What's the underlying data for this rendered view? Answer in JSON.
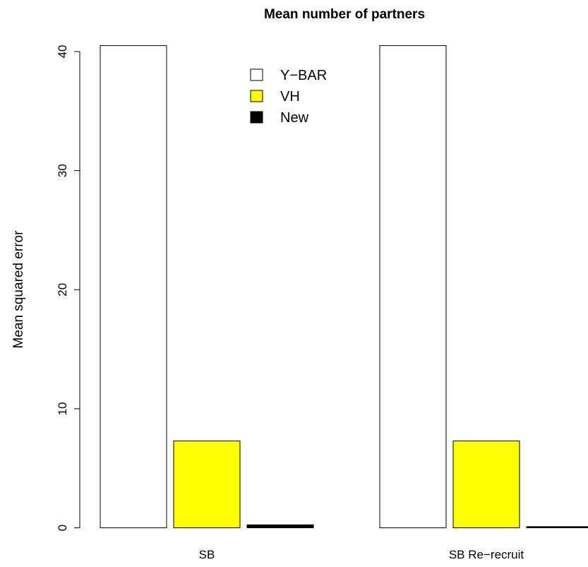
{
  "chart_data": {
    "type": "bar",
    "title": "Mean number of partners",
    "xlabel": "",
    "ylabel": "Mean squared error",
    "categories": [
      "SB",
      "SB Re−recruit"
    ],
    "series": [
      {
        "name": "Y−BAR",
        "color": "#ffffff",
        "values": [
          40.5,
          40.5
        ]
      },
      {
        "name": "VH",
        "color": "#ffff00",
        "values": [
          7.3,
          7.3
        ]
      },
      {
        "name": "New",
        "color": "#000000",
        "values": [
          0.25,
          0.1
        ]
      }
    ],
    "ylim": [
      0,
      40
    ],
    "yticks": [
      0,
      10,
      20,
      30,
      40
    ],
    "grid": false,
    "legend_position": "top-center"
  }
}
